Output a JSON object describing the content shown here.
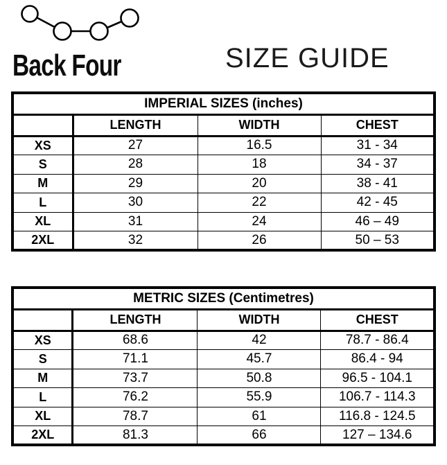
{
  "brand": {
    "name": "Back Four",
    "logo_icon": "four-connected-dots-zigzag"
  },
  "page_title": "SIZE GUIDE",
  "colors": {
    "border": "#000000",
    "background": "#ffffff",
    "text": "#000000"
  },
  "tables": [
    {
      "title": "IMPERIAL SIZES (inches)",
      "columns": [
        "",
        "LENGTH",
        "WIDTH",
        "CHEST"
      ],
      "rows": [
        [
          "XS",
          "27",
          "16.5",
          "31 - 34"
        ],
        [
          "S",
          "28",
          "18",
          "34 - 37"
        ],
        [
          "M",
          "29",
          "20",
          "38 - 41"
        ],
        [
          "L",
          "30",
          "22",
          "42 - 45"
        ],
        [
          "XL",
          "31",
          "24",
          "46 – 49"
        ],
        [
          "2XL",
          "32",
          "26",
          "50 – 53"
        ]
      ]
    },
    {
      "title": "METRIC SIZES (Centimetres)",
      "columns": [
        "",
        "LENGTH",
        "WIDTH",
        "CHEST"
      ],
      "rows": [
        [
          "XS",
          "68.6",
          "42",
          "78.7 - 86.4"
        ],
        [
          "S",
          "71.1",
          "45.7",
          "86.4 - 94"
        ],
        [
          "M",
          "73.7",
          "50.8",
          "96.5 - 104.1"
        ],
        [
          "L",
          "76.2",
          "55.9",
          "106.7 - 114.3"
        ],
        [
          "XL",
          "78.7",
          "61",
          "116.8 - 124.5"
        ],
        [
          "2XL",
          "81.3",
          "66",
          "127 – 134.6"
        ]
      ]
    }
  ]
}
